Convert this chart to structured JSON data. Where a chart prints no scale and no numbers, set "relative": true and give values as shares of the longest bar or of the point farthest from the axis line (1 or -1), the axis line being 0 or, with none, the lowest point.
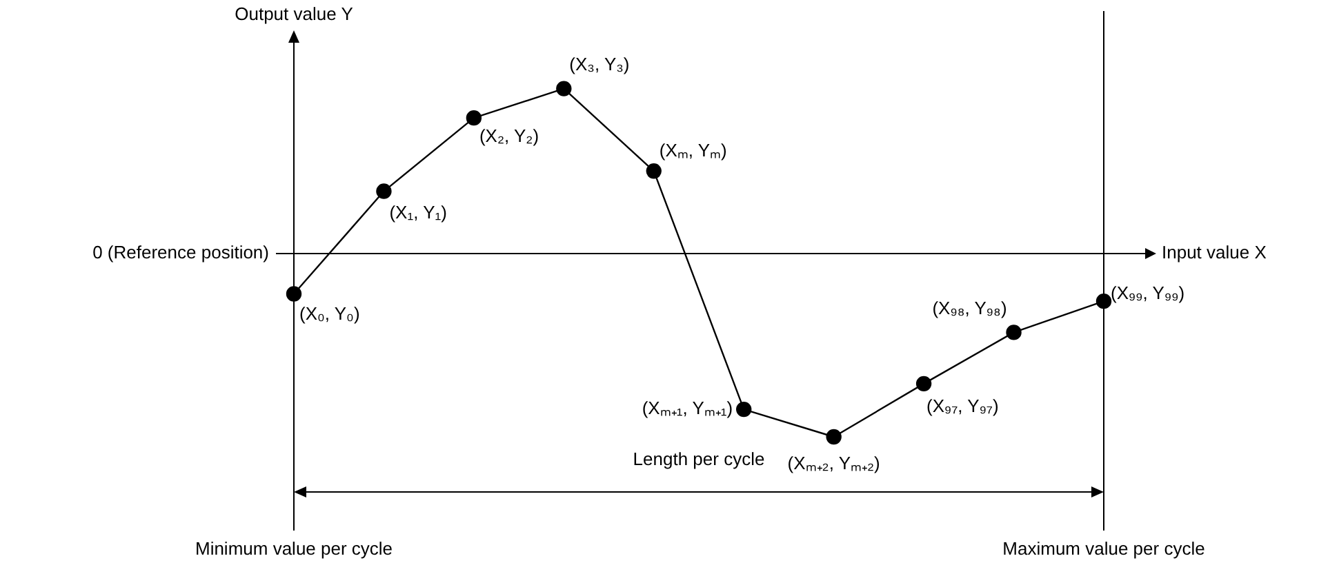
{
  "chart_data": {
    "type": "line",
    "relative": true,
    "xlabel": "Input value X",
    "ylabel": "Output value Y",
    "categories": [
      null,
      null,
      null,
      null,
      null,
      null,
      null,
      null,
      null,
      null
    ],
    "values": [
      -0.22,
      0.34,
      0.74,
      0.9,
      0.45,
      -0.85,
      -1,
      -0.71,
      -0.43,
      -0.26
    ],
    "color": "#000000",
    "marker": "circle",
    "line_style": "solid",
    "annotations": [
      "0 (Reference position)",
      "Length per cycle",
      "Minimum value per cycle",
      "Maximum value per cycle",
      "(X₀, Y₀)",
      "(X₁, Y₁)",
      "(X₂, Y₂)",
      "(X₃, Y₃)",
      "(Xₘ, Yₘ)",
      "(Xₘ₊₁, Yₘ₊₁)",
      "(Xₘ₊₂, Yₘ₊₂)",
      "(X₉₇, Y₉₇)",
      "(X₉₈, Y₉₈)",
      "(X₉₉, Y₉₉)"
    ]
  }
}
